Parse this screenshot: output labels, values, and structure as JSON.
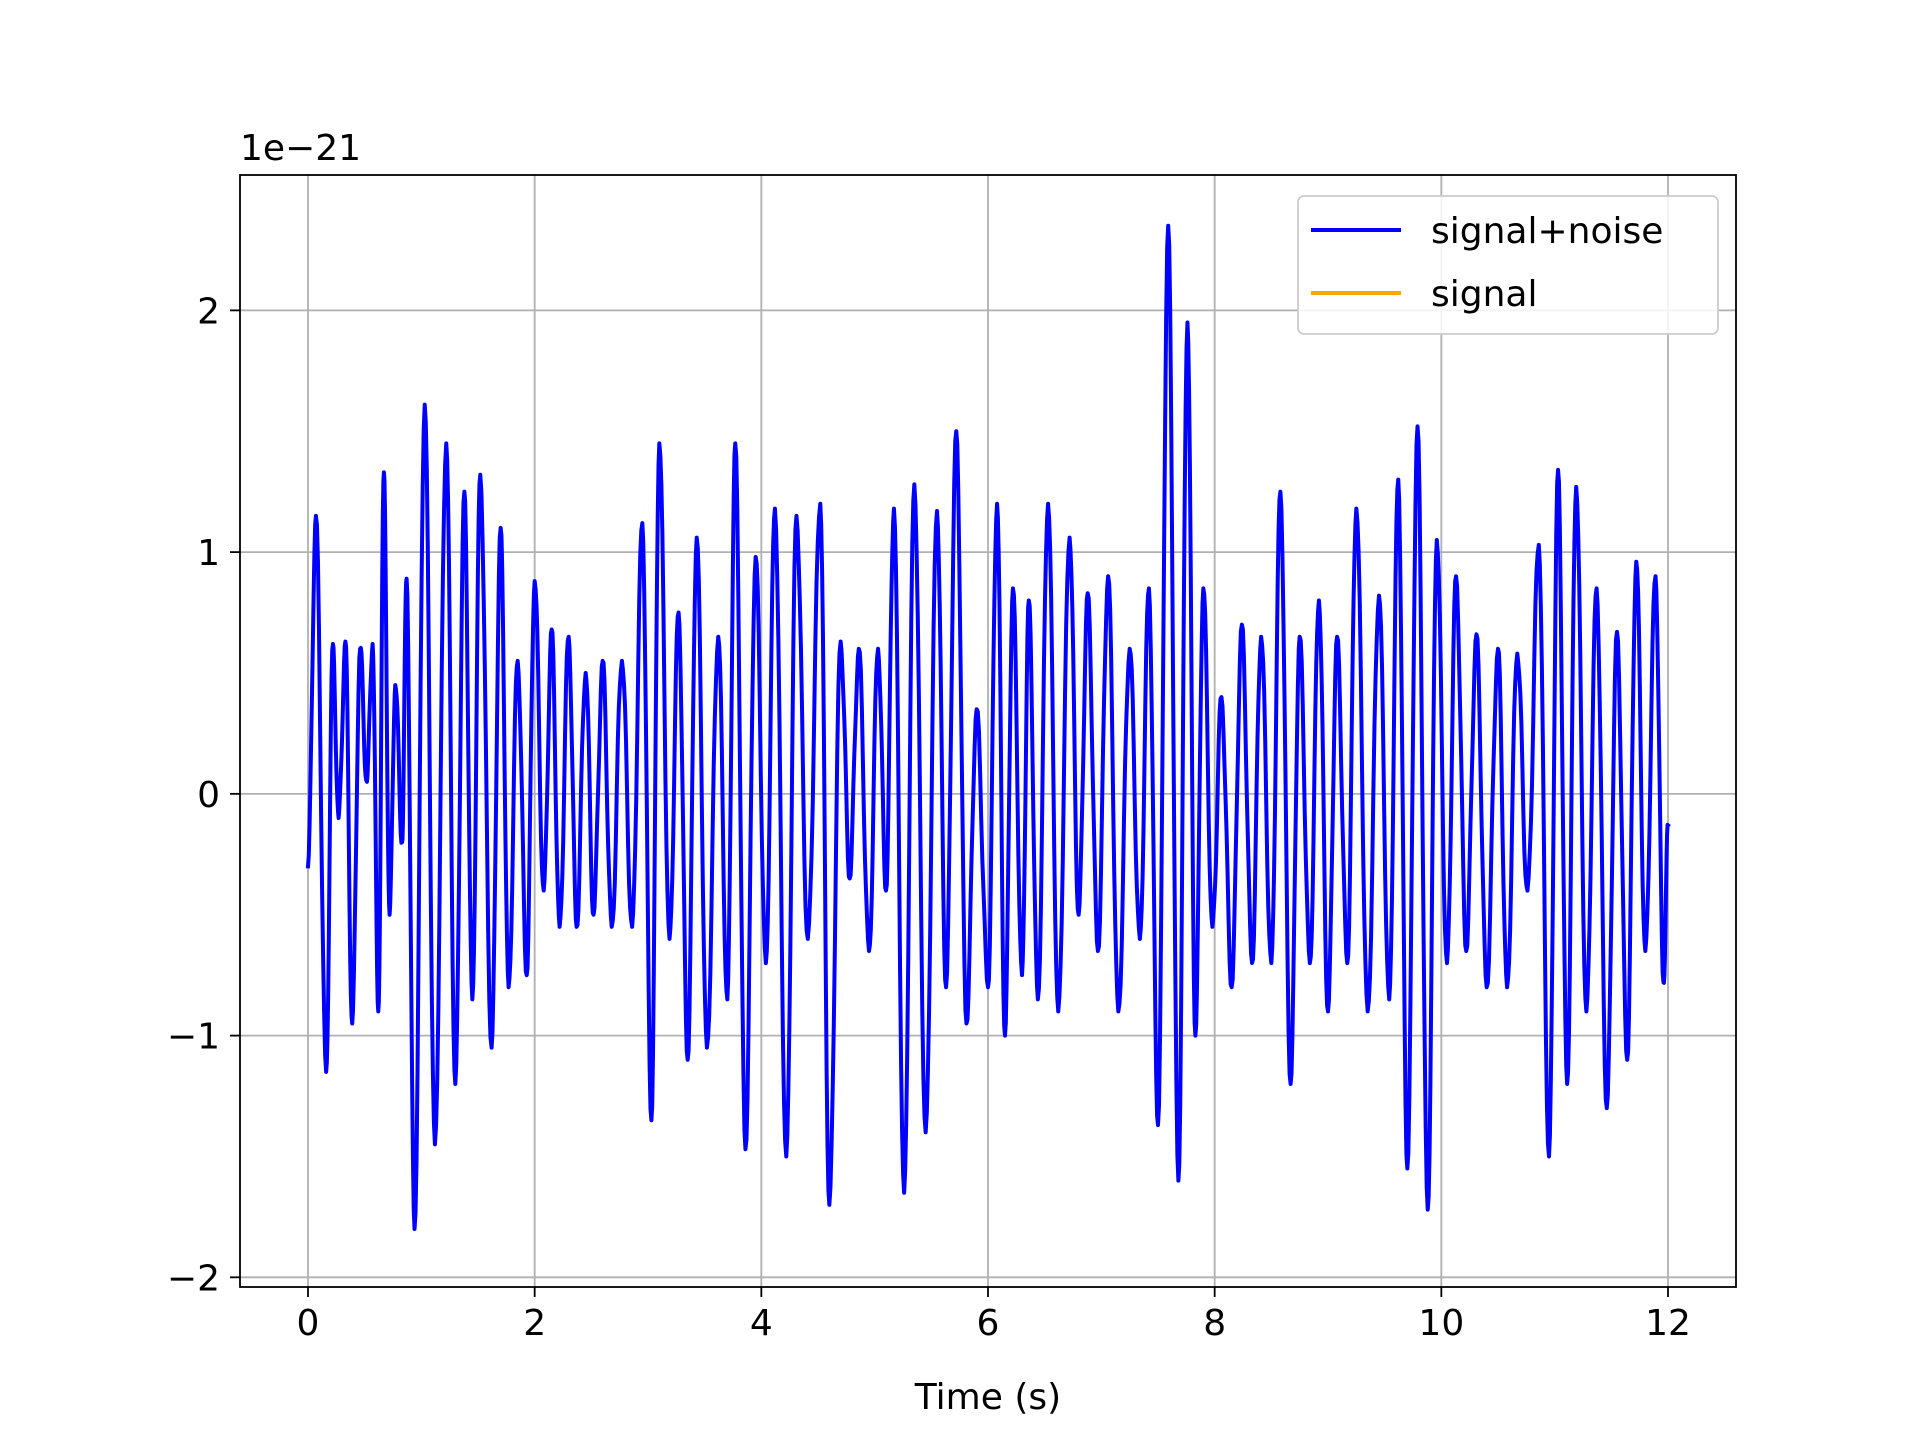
{
  "chart_data": {
    "type": "line",
    "xlabel": "Time (s)",
    "ylabel": "",
    "offset_text": "1e−21",
    "xlim": [
      -0.6,
      12.6
    ],
    "ylim": [
      -2.04,
      2.56
    ],
    "xticks": [
      0,
      2,
      4,
      6,
      8,
      10,
      12
    ],
    "yticks": [
      -2,
      -1,
      0,
      1,
      2
    ],
    "xtick_labels": [
      "0",
      "2",
      "4",
      "6",
      "8",
      "10",
      "12"
    ],
    "ytick_labels": [
      "−2",
      "−1",
      "0",
      "1",
      "2"
    ],
    "grid": true,
    "legend_position": "top-right",
    "series": [
      {
        "name": "signal+noise",
        "color": "#0000ff",
        "x_start": 0,
        "x_end": 12,
        "peaks": [
          [
            0.0,
            -0.3
          ],
          [
            0.07,
            1.15
          ],
          [
            0.16,
            -1.15
          ],
          [
            0.22,
            0.62
          ],
          [
            0.27,
            -0.1
          ],
          [
            0.33,
            0.63
          ],
          [
            0.39,
            -0.95
          ],
          [
            0.46,
            0.6
          ],
          [
            0.52,
            0.05
          ],
          [
            0.57,
            0.62
          ],
          [
            0.62,
            -0.9
          ],
          [
            0.67,
            1.33
          ],
          [
            0.72,
            -0.5
          ],
          [
            0.77,
            0.45
          ],
          [
            0.83,
            -0.2
          ],
          [
            0.87,
            0.89
          ],
          [
            0.94,
            -1.8
          ],
          [
            1.03,
            1.61
          ],
          [
            1.12,
            -1.45
          ],
          [
            1.22,
            1.45
          ],
          [
            1.3,
            -1.2
          ],
          [
            1.38,
            1.25
          ],
          [
            1.45,
            -0.85
          ],
          [
            1.52,
            1.32
          ],
          [
            1.62,
            -1.05
          ],
          [
            1.7,
            1.1
          ],
          [
            1.77,
            -0.8
          ],
          [
            1.85,
            0.55
          ],
          [
            1.93,
            -0.75
          ],
          [
            2.0,
            0.88
          ],
          [
            2.08,
            -0.4
          ],
          [
            2.15,
            0.68
          ],
          [
            2.22,
            -0.55
          ],
          [
            2.3,
            0.65
          ],
          [
            2.37,
            -0.55
          ],
          [
            2.45,
            0.5
          ],
          [
            2.52,
            -0.5
          ],
          [
            2.6,
            0.55
          ],
          [
            2.68,
            -0.55
          ],
          [
            2.77,
            0.55
          ],
          [
            2.86,
            -0.55
          ],
          [
            2.95,
            1.12
          ],
          [
            3.03,
            -1.35
          ],
          [
            3.1,
            1.45
          ],
          [
            3.19,
            -0.6
          ],
          [
            3.27,
            0.75
          ],
          [
            3.35,
            -1.1
          ],
          [
            3.43,
            1.06
          ],
          [
            3.52,
            -1.05
          ],
          [
            3.62,
            0.65
          ],
          [
            3.7,
            -0.85
          ],
          [
            3.77,
            1.45
          ],
          [
            3.86,
            -1.47
          ],
          [
            3.95,
            0.98
          ],
          [
            4.04,
            -0.7
          ],
          [
            4.12,
            1.18
          ],
          [
            4.22,
            -1.5
          ],
          [
            4.31,
            1.15
          ],
          [
            4.41,
            -0.6
          ],
          [
            4.52,
            1.2
          ],
          [
            4.6,
            -1.7
          ],
          [
            4.7,
            0.63
          ],
          [
            4.78,
            -0.35
          ],
          [
            4.86,
            0.6
          ],
          [
            4.95,
            -0.65
          ],
          [
            5.03,
            0.6
          ],
          [
            5.1,
            -0.4
          ],
          [
            5.17,
            1.18
          ],
          [
            5.26,
            -1.65
          ],
          [
            5.35,
            1.28
          ],
          [
            5.45,
            -1.4
          ],
          [
            5.55,
            1.17
          ],
          [
            5.63,
            -0.8
          ],
          [
            5.72,
            1.5
          ],
          [
            5.81,
            -0.95
          ],
          [
            5.9,
            0.35
          ],
          [
            6.0,
            -0.8
          ],
          [
            6.08,
            1.2
          ],
          [
            6.15,
            -1.0
          ],
          [
            6.22,
            0.85
          ],
          [
            6.3,
            -0.75
          ],
          [
            6.36,
            0.8
          ],
          [
            6.44,
            -0.85
          ],
          [
            6.53,
            1.2
          ],
          [
            6.62,
            -0.9
          ],
          [
            6.72,
            1.06
          ],
          [
            6.8,
            -0.5
          ],
          [
            6.88,
            0.83
          ],
          [
            6.97,
            -0.65
          ],
          [
            7.06,
            0.9
          ],
          [
            7.15,
            -0.9
          ],
          [
            7.25,
            0.6
          ],
          [
            7.34,
            -0.6
          ],
          [
            7.42,
            0.85
          ],
          [
            7.5,
            -1.37
          ],
          [
            7.59,
            2.35
          ],
          [
            7.68,
            -1.6
          ],
          [
            7.76,
            1.95
          ],
          [
            7.83,
            -1.0
          ],
          [
            7.9,
            0.85
          ],
          [
            7.98,
            -0.55
          ],
          [
            8.06,
            0.4
          ],
          [
            8.15,
            -0.8
          ],
          [
            8.24,
            0.7
          ],
          [
            8.33,
            -0.7
          ],
          [
            8.41,
            0.65
          ],
          [
            8.5,
            -0.7
          ],
          [
            8.58,
            1.25
          ],
          [
            8.67,
            -1.2
          ],
          [
            8.75,
            0.65
          ],
          [
            8.84,
            -0.7
          ],
          [
            8.92,
            0.8
          ],
          [
            9.0,
            -0.9
          ],
          [
            9.08,
            0.65
          ],
          [
            9.17,
            -0.7
          ],
          [
            9.25,
            1.18
          ],
          [
            9.35,
            -0.9
          ],
          [
            9.45,
            0.82
          ],
          [
            9.54,
            -0.85
          ],
          [
            9.62,
            1.3
          ],
          [
            9.7,
            -1.55
          ],
          [
            9.79,
            1.52
          ],
          [
            9.88,
            -1.72
          ],
          [
            9.96,
            1.05
          ],
          [
            10.05,
            -0.7
          ],
          [
            10.13,
            0.9
          ],
          [
            10.22,
            -0.65
          ],
          [
            10.31,
            0.66
          ],
          [
            10.4,
            -0.8
          ],
          [
            10.5,
            0.6
          ],
          [
            10.58,
            -0.8
          ],
          [
            10.67,
            0.58
          ],
          [
            10.76,
            -0.4
          ],
          [
            10.86,
            1.03
          ],
          [
            10.95,
            -1.5
          ],
          [
            11.03,
            1.34
          ],
          [
            11.11,
            -1.2
          ],
          [
            11.19,
            1.27
          ],
          [
            11.28,
            -0.9
          ],
          [
            11.37,
            0.85
          ],
          [
            11.46,
            -1.3
          ],
          [
            11.55,
            0.67
          ],
          [
            11.64,
            -1.1
          ],
          [
            11.72,
            0.96
          ],
          [
            11.8,
            -0.65
          ],
          [
            11.89,
            0.9
          ],
          [
            11.96,
            -0.78
          ],
          [
            12.0,
            -0.13
          ]
        ]
      },
      {
        "name": "signal",
        "color": "#ffa500",
        "values": []
      }
    ]
  }
}
